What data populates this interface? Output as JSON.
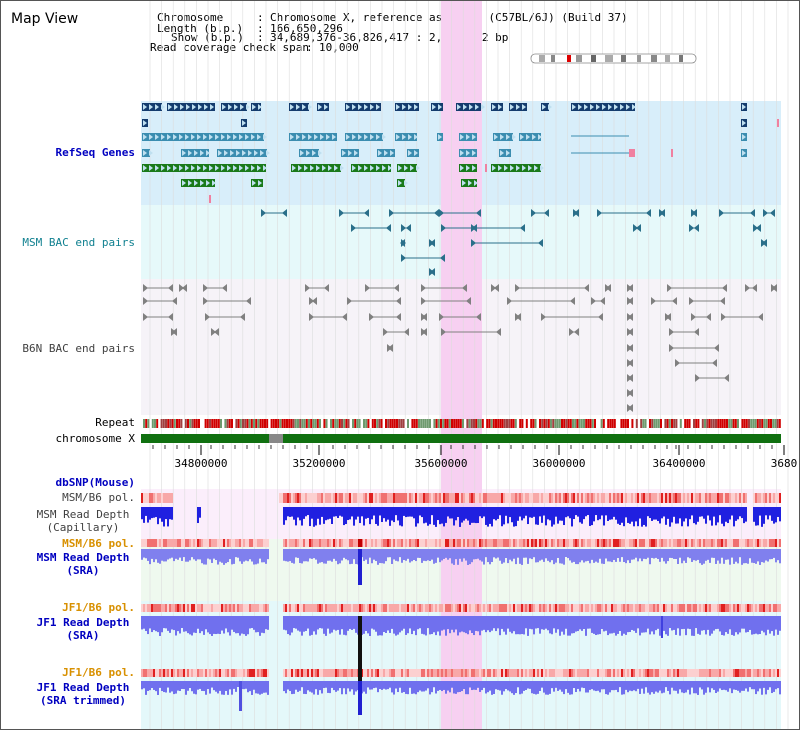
{
  "app": {
    "title": "Map View"
  },
  "info": {
    "chromosome_key": "Chromosome",
    "chromosome_val": "Chromosome X, reference assembly (C57BL/6J) (Build 37)",
    "length_key": "Length (b.p.)",
    "length_val": "166,650,296",
    "show_key": "Show (b.p.)",
    "show_val": "34,689,376-36,826,417 : 2,137,042 bp",
    "span_key": "Read coverage check span",
    "span_val": "10,000"
  },
  "tracks": {
    "refseq": "RefSeq Genes",
    "msm_bac": "MSM BAC end pairs",
    "b6n_bac": "B6N BAC end pairs",
    "repeat": "Repeat",
    "chromosome": "chromosome X",
    "dbsnp": "dbSNP(Mouse)",
    "msm_pol1": "MSM/B6 pol.",
    "msm_depth_cap": "MSM Read Depth\n(Capillary)",
    "msm_pol2": "MSM/B6 pol.",
    "msm_depth_sra": "MSM Read Depth\n(SRA)",
    "jf1_pol1": "JF1/B6 pol.",
    "jf1_depth_sra": "JF1 Read Depth\n(SRA)",
    "jf1_pol2": "JF1/B6 pol.",
    "jf1_depth_trim": "JF1 Read Depth\n(SRA trimmed)"
  },
  "axis": {
    "ticks": [
      "34800000",
      "35200000",
      "35600000",
      "36000000",
      "36400000",
      "3680"
    ]
  },
  "colors": {
    "refseq_bg": "#d8eefa",
    "msm_bac_bg": "#e6f9fa",
    "b6n_bac_bg": "#f6f3f8",
    "highlight": "#f7d0f1",
    "gene_dark": "#143c6e",
    "gene_mid": "#3b8db0",
    "gene_green": "#1a7a1a",
    "bac": "#2a6f8a",
    "chrom_green": "#107010",
    "label_blue": "#0000c0",
    "label_orange": "#d89000",
    "label_teal": "#108090"
  }
}
